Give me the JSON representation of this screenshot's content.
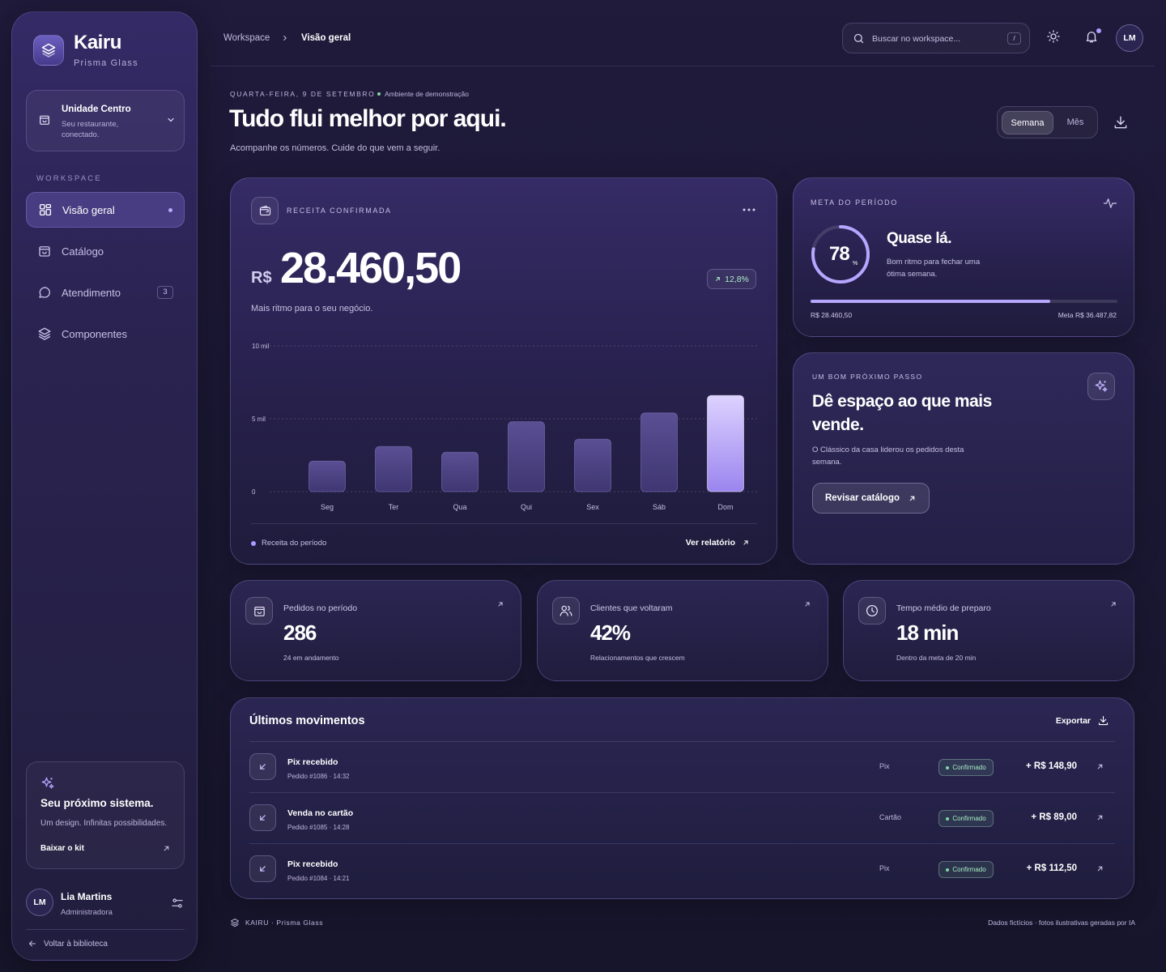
{
  "brand": {
    "name": "Kairu",
    "subtitle": "Prisma Glass"
  },
  "unit": {
    "name": "Unidade Centro",
    "description": "Seu restaurante, conectado."
  },
  "sidebar": {
    "section_label": "WORKSPACE",
    "items": [
      {
        "label": "Visão geral",
        "icon": "grid-icon",
        "active": true
      },
      {
        "label": "Catálogo",
        "icon": "bag-icon"
      },
      {
        "label": "Atendimento",
        "icon": "chat-icon",
        "badge": "3"
      },
      {
        "label": "Componentes",
        "icon": "layers-icon"
      }
    ],
    "promo": {
      "title": "Seu próximo sistema.",
      "text": "Um design. Infinitas possibilidades.",
      "link": "Baixar o kit"
    },
    "user": {
      "initials": "LM",
      "name": "Lia Martins",
      "role": "Administradora"
    },
    "back_label": "Voltar à biblioteca"
  },
  "topbar": {
    "breadcrumb": [
      "Workspace",
      "Visão geral"
    ],
    "search_placeholder": "Buscar no workspace...",
    "search_shortcut": "/",
    "avatar_initials": "LM"
  },
  "header": {
    "date": "QUARTA-FEIRA, 9 DE SETEMBRO",
    "env": "Ambiente de demonstração",
    "title": "Tudo flui melhor por aqui.",
    "subtitle": "Acompanhe os números. Cuide do que vem a seguir.",
    "period_options": [
      "Semana",
      "Mês"
    ],
    "period_selected": "Semana"
  },
  "revenue": {
    "label": "RECEITA CONFIRMADA",
    "currency": "R$",
    "value": "28.460,50",
    "trend": "12,8%",
    "subtitle": "Mais ritmo para o seu negócio.",
    "legend": "Receita do período",
    "link": "Ver relatório"
  },
  "chart_data": {
    "type": "bar",
    "categories": [
      "Seg",
      "Ter",
      "Qua",
      "Qui",
      "Sex",
      "Sáb",
      "Dom"
    ],
    "values": [
      2100,
      3100,
      2700,
      4800,
      3600,
      5400,
      6600
    ],
    "ylim": [
      0,
      10000
    ],
    "yticks": [
      {
        "value": 0,
        "label": "0"
      },
      {
        "value": 5000,
        "label": "5 mil"
      },
      {
        "value": 10000,
        "label": "10 mil"
      }
    ],
    "highlight_index": 6,
    "grid": true
  },
  "goal": {
    "label": "META DO PERÍODO",
    "percent": 78,
    "percent_suffix": "%",
    "title": "Quase lá.",
    "text": "Bom ritmo para fechar uma ótima semana.",
    "current": "R$ 28.460,50",
    "target": "Meta R$ 36.487,82"
  },
  "next_step": {
    "label": "UM BOM PRÓXIMO PASSO",
    "title": "Dê espaço ao que mais vende.",
    "text": "O Clássico da casa liderou os pedidos desta semana.",
    "button": "Revisar catálogo"
  },
  "stats": [
    {
      "label": "Pedidos no período",
      "value": "286",
      "sub": "24 em andamento",
      "icon": "bag-icon"
    },
    {
      "label": "Clientes que voltaram",
      "value": "42%",
      "sub": "Relacionamentos que crescem",
      "icon": "users-icon"
    },
    {
      "label": "Tempo médio de preparo",
      "value": "18 min",
      "sub": "Dentro da meta de 20 min",
      "icon": "clock-icon"
    }
  ],
  "transactions": {
    "title": "Últimos movimentos",
    "export": "Exportar",
    "rows": [
      {
        "name": "Pix recebido",
        "meta": "Pedido #1086 · 14:32",
        "method": "Pix",
        "status": "Confirmado",
        "amount": "+ R$ 148,90"
      },
      {
        "name": "Venda no cartão",
        "meta": "Pedido #1085 · 14:28",
        "method": "Cartão",
        "status": "Confirmado",
        "amount": "+ R$ 89,00"
      },
      {
        "name": "Pix recebido",
        "meta": "Pedido #1084 · 14:21",
        "method": "Pix",
        "status": "Confirmado",
        "amount": "+ R$ 112,50"
      }
    ]
  },
  "footer": {
    "left": "KAIRU · Prisma Glass",
    "right": "Dados fictícios · fotos ilustrativas geradas por IA"
  }
}
